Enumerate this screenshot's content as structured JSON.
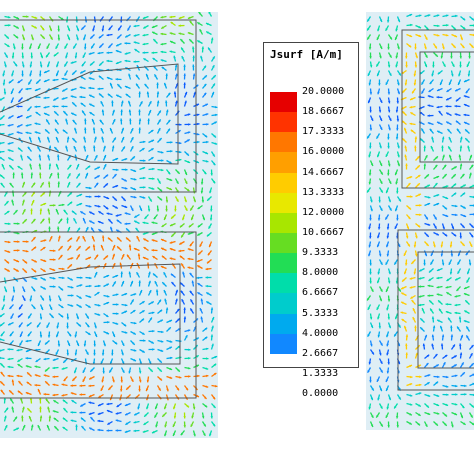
{
  "legend": {
    "title": "Jsurf [A/m]",
    "values": [
      "20.0000",
      "18.6667",
      "17.3333",
      "16.0000",
      "14.6667",
      "13.3333",
      "12.0000",
      "10.6667",
      "9.3333",
      "8.0000",
      "6.6667",
      "5.3333",
      "4.0000",
      "2.6667",
      "1.3333",
      "0.0000"
    ],
    "colors": [
      "#e60000",
      "#ff3300",
      "#ff7700",
      "#ff9f00",
      "#ffcc00",
      "#e8e800",
      "#a8e600",
      "#66dd22",
      "#22dd55",
      "#00ddaa",
      "#00cccc",
      "#00aaee",
      "#1188ff",
      "#0a5cff",
      "#0033ee",
      "#0010cc"
    ]
  }
}
